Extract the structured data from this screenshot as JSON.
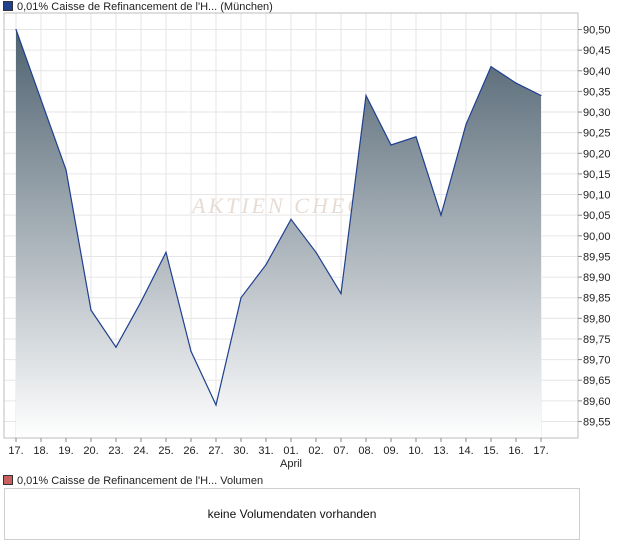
{
  "legend_price": {
    "label": "0,01% Caisse de Refinancement de l'H... (München)",
    "color": "#1f3f8f"
  },
  "legend_volume": {
    "label": "0,01% Caisse de Refinancement de l'H... Volumen",
    "color": "#c96060"
  },
  "volume_panel": {
    "message": "keine Volumendaten vorhanden"
  },
  "watermark": {
    "text": "AKTIEN CHECK"
  },
  "chart_data": {
    "type": "area",
    "title": "",
    "xlabel": "",
    "ylabel": "",
    "x": [
      "17.",
      "18.",
      "19.",
      "20.",
      "23.",
      "24.",
      "25.",
      "26.",
      "27.",
      "30.",
      "31.",
      "01.",
      "02.",
      "07.",
      "08.",
      "09.",
      "10.",
      "13.",
      "14.",
      "15.",
      "16.",
      "17."
    ],
    "month_labels": [
      {
        "index": 11,
        "label": "April"
      }
    ],
    "series": [
      {
        "values": [
          90.5,
          90.33,
          90.16,
          89.82,
          89.73,
          89.84,
          89.96,
          89.72,
          89.59,
          89.85,
          89.93,
          90.04,
          89.96,
          89.86,
          90.34,
          90.22,
          90.24,
          90.05,
          90.27,
          90.41,
          90.37,
          90.34
        ]
      }
    ],
    "y_ticks": [
      "90,50",
      "90,45",
      "90,40",
      "90,35",
      "90,30",
      "90,25",
      "90,20",
      "90,15",
      "90,10",
      "90,05",
      "90,00",
      "89,95",
      "89,90",
      "89,85",
      "89,80",
      "89,75",
      "89,70",
      "89,65",
      "89,60",
      "89,55"
    ],
    "ylim": [
      89.51,
      90.54
    ],
    "grid": true,
    "colors": {
      "line": "#1f3f8f",
      "fill_top": "#4f6270",
      "fill_bottom": "#ffffff"
    }
  }
}
